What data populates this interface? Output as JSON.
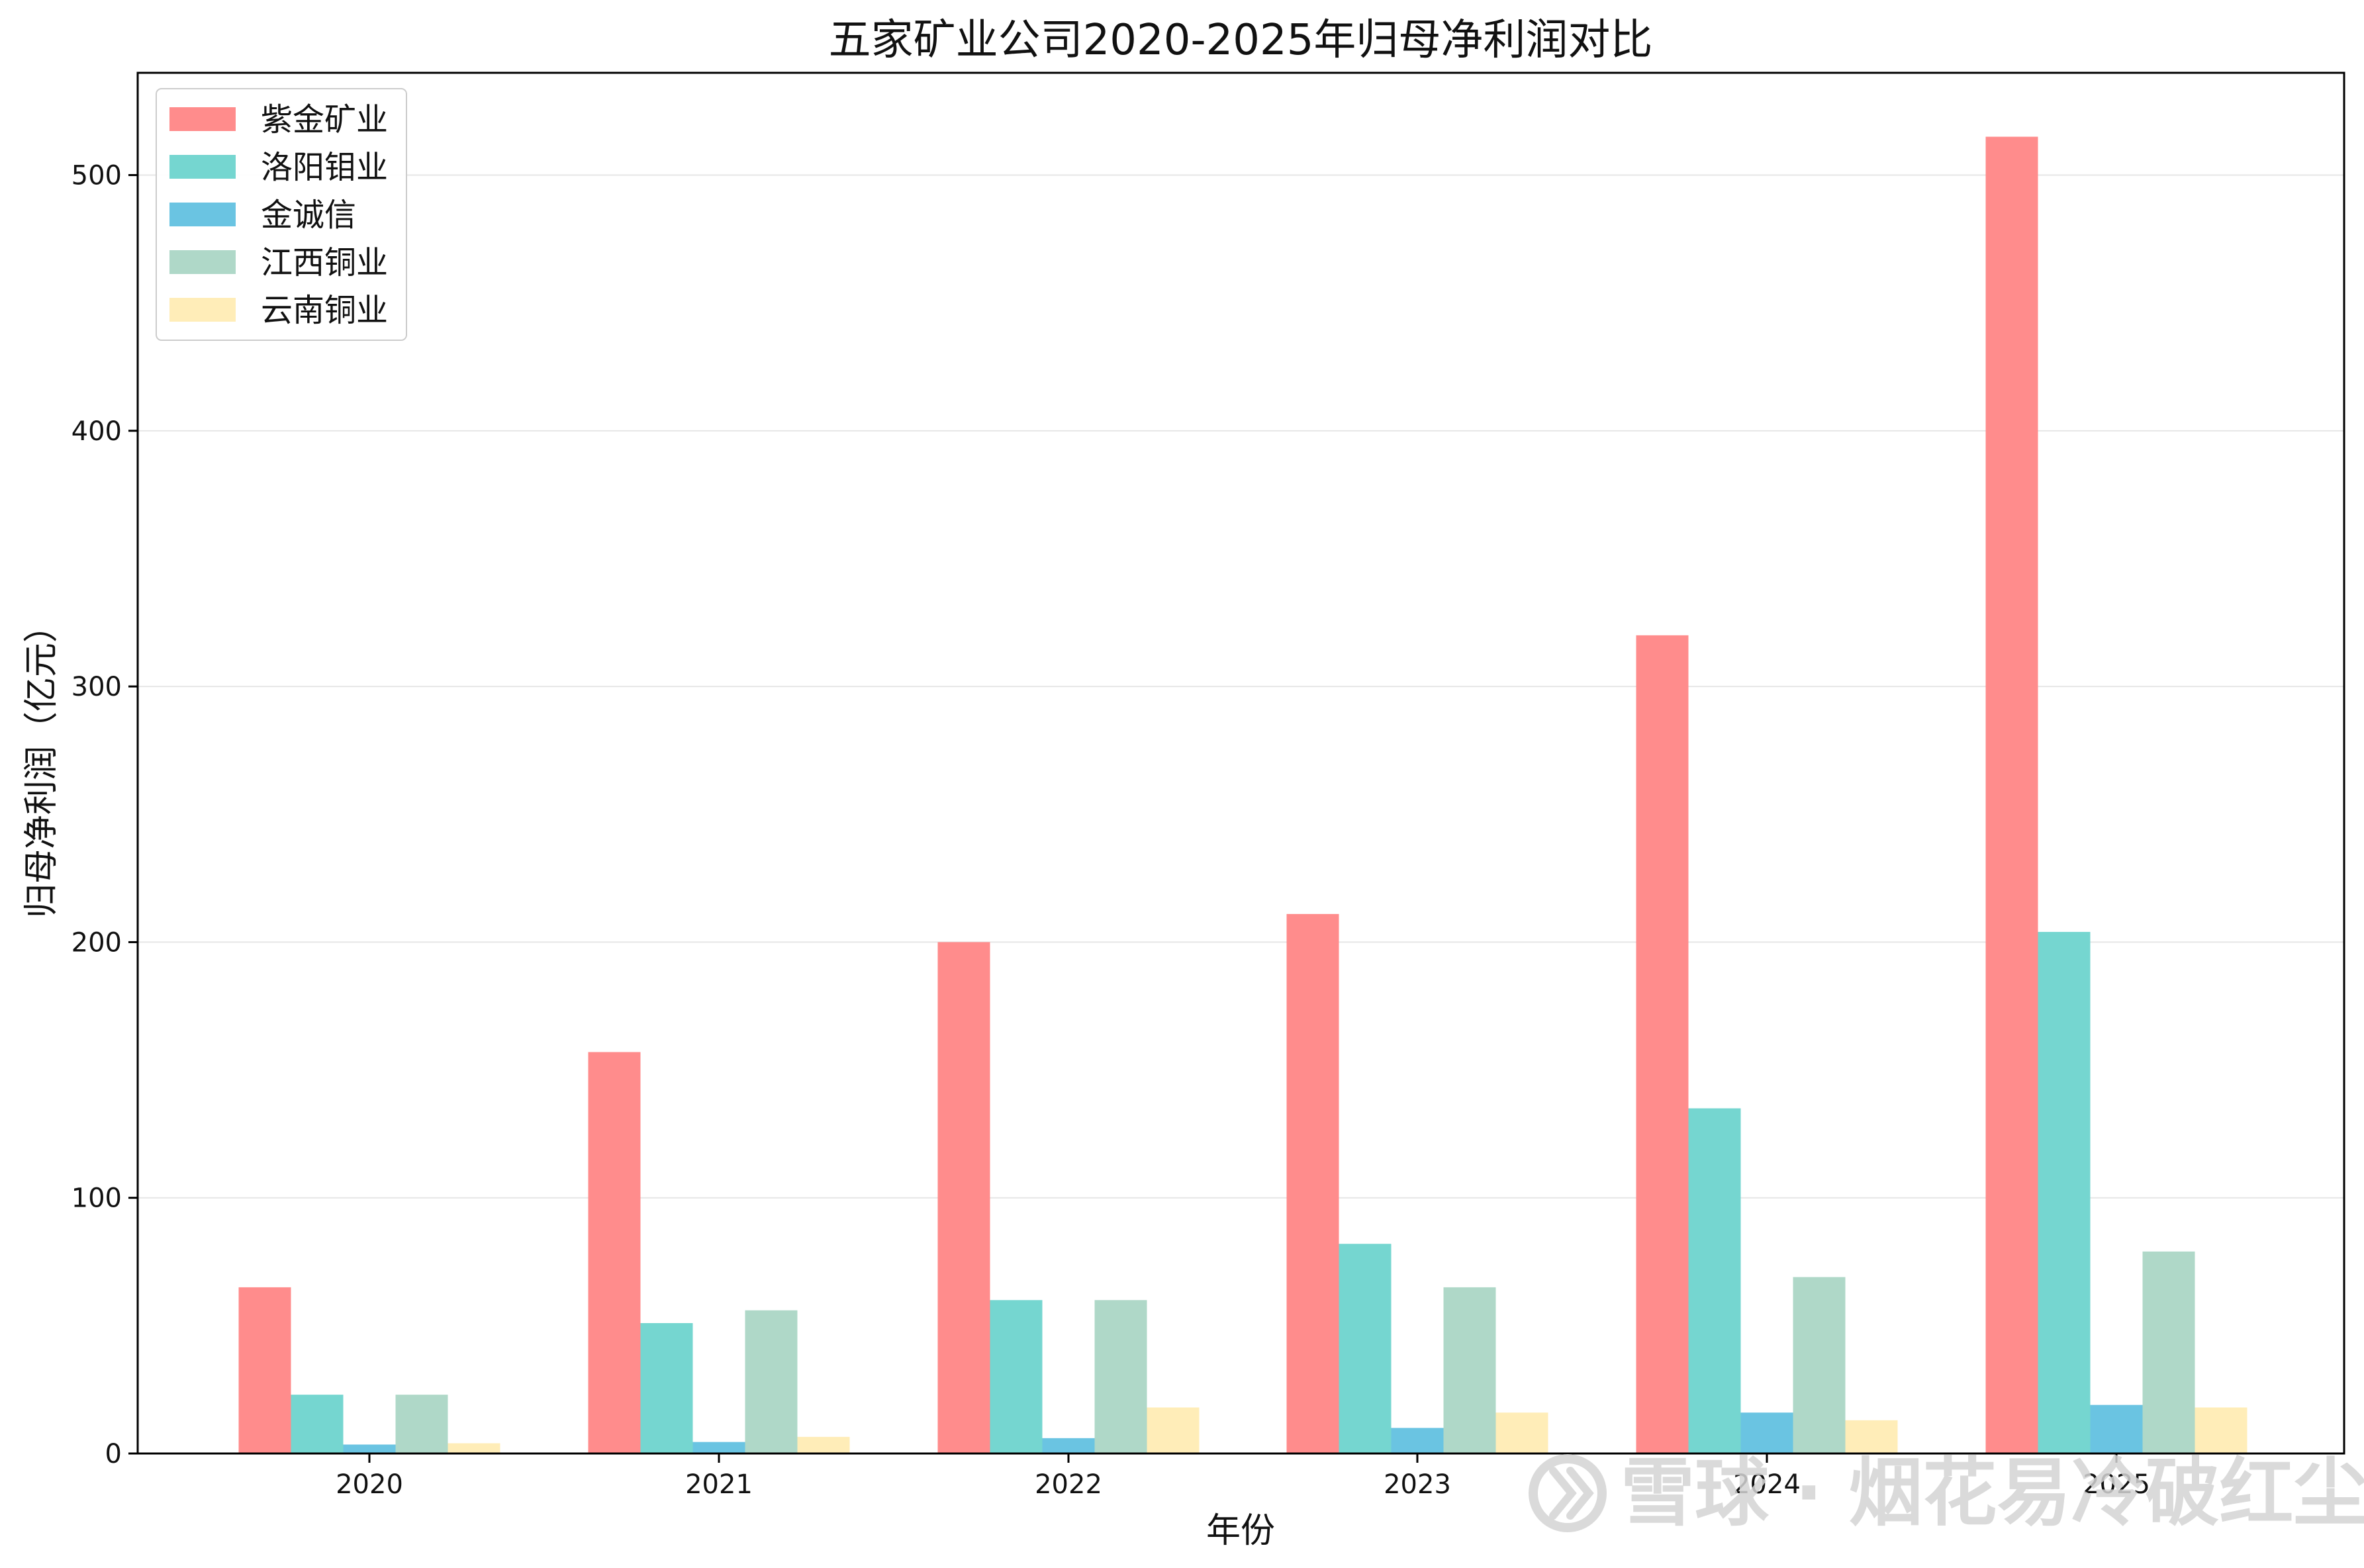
{
  "chart_data": {
    "type": "bar",
    "title": "五家矿业公司2020-2025年归母净利润对比",
    "xlabel": "年份",
    "ylabel": "归母净利润（亿元）",
    "categories": [
      "2020",
      "2021",
      "2022",
      "2023",
      "2024",
      "2025"
    ],
    "series": [
      {
        "name": "紫金矿业",
        "color": "#ff8c8c",
        "values": [
          65,
          157,
          200,
          211,
          320,
          515
        ]
      },
      {
        "name": "洛阳钼业",
        "color": "#75d6d0",
        "values": [
          23,
          51,
          60,
          82,
          135,
          204
        ]
      },
      {
        "name": "金诚信",
        "color": "#6ac4e2",
        "values": [
          3.5,
          4.5,
          6,
          10,
          16,
          19
        ]
      },
      {
        "name": "江西铜业",
        "color": "#afd8c8",
        "values": [
          23,
          56,
          60,
          65,
          69,
          79
        ]
      },
      {
        "name": "云南铜业",
        "color": "#ffedb8",
        "values": [
          4,
          6.5,
          18,
          16,
          13,
          18
        ]
      }
    ],
    "yticks": [
      0,
      100,
      200,
      300,
      400,
      500
    ],
    "ylim": [
      0,
      540
    ],
    "grid": "horizontal",
    "legend": "top-left"
  },
  "watermark": {
    "icon": "snowball-logo-icon",
    "text": "雪球 · 烟花易冷破红尘"
  }
}
